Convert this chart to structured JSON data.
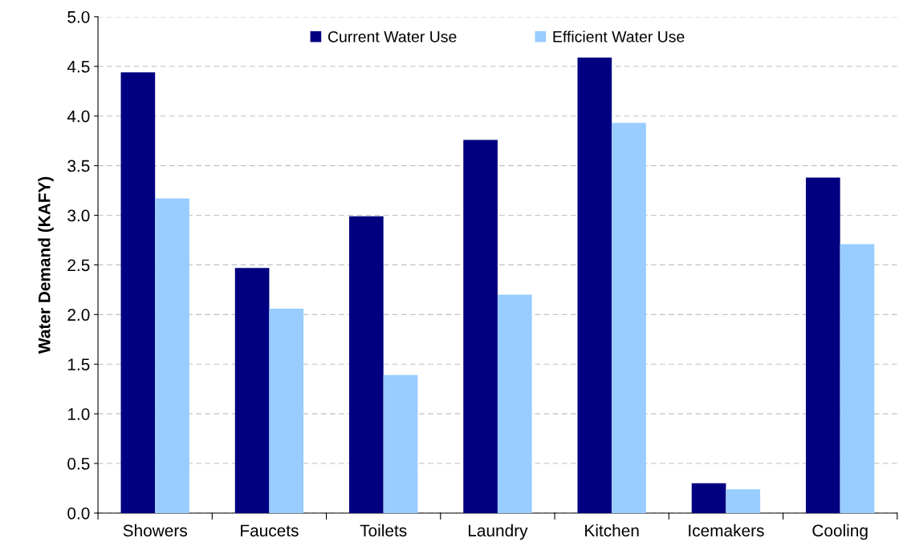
{
  "chart_data": {
    "type": "bar",
    "ylabel": "Water Demand (KAFY)",
    "categories": [
      "Showers",
      "Faucets",
      "Toilets",
      "Laundry",
      "Kitchen",
      "Icemakers",
      "Cooling"
    ],
    "series": [
      {
        "name": "Current Water Use",
        "color": "#000080",
        "values": [
          4.44,
          2.47,
          2.99,
          3.76,
          4.59,
          0.3,
          3.38
        ]
      },
      {
        "name": "Efficient Water Use",
        "color": "#99ccff",
        "values": [
          3.17,
          2.06,
          1.39,
          2.2,
          3.93,
          0.24,
          2.71
        ]
      }
    ],
    "ylim": [
      0,
      5
    ],
    "yticks": [
      {
        "value": 0,
        "label": "0.0"
      },
      {
        "value": 0.5,
        "label": "0.5"
      },
      {
        "value": 1,
        "label": "1.0"
      },
      {
        "value": 1.5,
        "label": "1.5"
      },
      {
        "value": 2,
        "label": "2.0"
      },
      {
        "value": 2.5,
        "label": "2.5"
      },
      {
        "value": 3,
        "label": "3.0"
      },
      {
        "value": 3.5,
        "label": "3.5"
      },
      {
        "value": 4,
        "label": "4.0"
      },
      {
        "value": 4.5,
        "label": "4.5"
      },
      {
        "value": 5,
        "label": "5.0"
      }
    ],
    "grid": "y",
    "legend": "top"
  }
}
